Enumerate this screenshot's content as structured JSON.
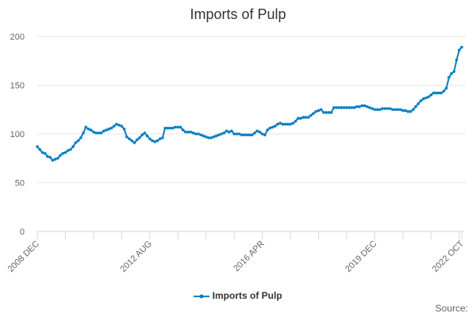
{
  "chart_data": {
    "type": "line",
    "title": "Imports of Pulp",
    "source_label": "Source:",
    "color": "#0a7fc4",
    "ylim": [
      0,
      200
    ],
    "y_ticks": [
      0,
      50,
      100,
      150,
      200
    ],
    "x_tick_labels": [
      {
        "index": 0,
        "label": "2008 DEC"
      },
      {
        "index": 44,
        "label": "2012 AUG"
      },
      {
        "index": 88,
        "label": "2016 APR"
      },
      {
        "index": 132,
        "label": "2019 DEC"
      },
      {
        "index": 166,
        "label": "2022 OCT"
      }
    ],
    "x_start": "2008 DEC",
    "x_end": "2022 OCT",
    "x_frequency": "monthly",
    "grid": "horizontal",
    "legend": "bottom",
    "series": [
      {
        "name": "Imports of Pulp",
        "values": [
          87,
          84,
          81,
          80,
          77,
          76,
          73,
          74,
          75,
          78,
          80,
          81,
          83,
          84,
          87,
          91,
          93,
          96,
          101,
          107,
          105,
          104,
          102,
          101,
          101,
          101,
          103,
          104,
          105,
          106,
          108,
          110,
          109,
          108,
          105,
          97,
          95,
          93,
          91,
          94,
          96,
          99,
          101,
          98,
          95,
          93,
          92,
          93,
          95,
          96,
          106,
          106,
          106,
          106,
          107,
          107,
          107,
          104,
          102,
          102,
          102,
          101,
          100,
          100,
          99,
          98,
          97,
          96,
          96,
          97,
          98,
          99,
          100,
          101,
          103,
          102,
          103,
          100,
          100,
          100,
          99,
          99,
          99,
          99,
          99,
          101,
          103,
          102,
          100,
          99,
          104,
          106,
          107,
          108,
          110,
          111,
          110,
          110,
          110,
          110,
          111,
          113,
          116,
          116,
          117,
          117,
          117,
          119,
          121,
          123,
          124,
          125,
          122,
          122,
          122,
          122,
          127,
          127,
          127,
          127,
          127,
          127,
          127,
          127,
          127,
          128,
          128,
          129,
          129,
          128,
          127,
          126,
          125,
          125,
          125,
          126,
          126,
          126,
          126,
          125,
          125,
          125,
          125,
          124,
          124,
          123,
          123,
          125,
          128,
          131,
          134,
          136,
          137,
          138,
          140,
          142,
          142,
          142,
          142,
          144,
          147,
          158,
          162,
          164,
          176,
          186,
          189
        ]
      }
    ]
  }
}
